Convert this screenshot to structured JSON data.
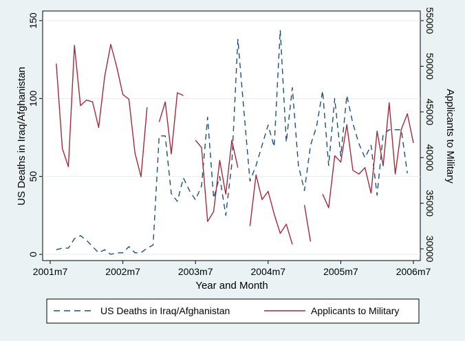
{
  "chart_data": {
    "type": "line",
    "xlabel": "Year and Month",
    "ylabel_left": "US Deaths in Iraq/Afghanistan",
    "ylabel_right": "Applicants to Military",
    "x_months_range": [
      "2001-08",
      "2006-07"
    ],
    "x_ticks": [
      "2001m7",
      "2002m7",
      "2003m7",
      "2004m7",
      "2005m7",
      "2006m7"
    ],
    "y_left_ticks": [
      "0",
      "50",
      "100",
      "150"
    ],
    "y_right_ticks": [
      "30000",
      "35000",
      "40000",
      "45000",
      "50000",
      "55000"
    ],
    "ylim_left": [
      0,
      150
    ],
    "ylim_right": [
      30000,
      55000
    ],
    "grid": "horizontal",
    "legend_position": "bottom",
    "colors": {
      "deaths": "#1a4f7a",
      "applicants": "#a3293a",
      "background": "#eaf2f3",
      "plot_bg": "#ffffff"
    },
    "series": [
      {
        "name": "US Deaths in Iraq/Afghanistan",
        "axis": "left",
        "style": "dashed",
        "x": [
          "2001-08",
          "2001-09",
          "2001-10",
          "2001-11",
          "2001-12",
          "2002-01",
          "2002-02",
          "2002-03",
          "2002-04",
          "2002-05",
          "2002-06",
          "2002-07",
          "2002-08",
          "2002-09",
          "2002-10",
          "2002-11",
          "2002-12",
          "2003-01",
          "2003-02",
          "2003-03",
          "2003-04",
          "2003-05",
          "2003-06",
          "2003-07",
          "2003-08",
          "2003-09",
          "2003-10",
          "2003-11",
          "2003-12",
          "2004-01",
          "2004-02",
          "2004-03",
          "2004-04",
          "2004-05",
          "2004-06",
          "2004-07",
          "2004-08",
          "2004-09",
          "2004-10",
          "2004-11",
          "2004-12",
          "2005-01",
          "2005-02",
          "2005-03",
          "2005-04",
          "2005-05",
          "2005-06",
          "2005-07",
          "2005-08",
          "2005-09",
          "2005-10",
          "2005-11",
          "2005-12",
          "2006-01",
          "2006-02",
          "2006-03",
          "2006-04",
          "2006-05",
          "2006-06",
          "2006-07"
        ],
        "values": [
          3,
          4,
          4,
          10,
          12,
          9,
          5,
          1,
          3,
          0,
          1,
          1,
          5,
          1,
          1,
          4,
          6,
          76,
          76,
          39,
          34,
          49,
          41,
          35,
          44,
          88,
          36,
          50,
          25,
          58,
          138,
          92,
          47,
          57,
          70,
          83,
          69,
          144,
          72,
          107,
          57,
          41,
          70,
          82,
          105,
          57,
          100,
          63,
          102,
          84,
          71,
          62,
          70,
          38,
          77,
          80,
          80,
          80,
          52,
          null
        ]
      },
      {
        "name": "Applicants to Military",
        "axis": "right",
        "style": "solid",
        "x": [
          "2001-08",
          "2001-09",
          "2001-10",
          "2001-11",
          "2001-12",
          "2002-01",
          "2002-02",
          "2002-03",
          "2002-04",
          "2002-05",
          "2002-06",
          "2002-07",
          "2002-08",
          "2002-09",
          "2002-10",
          "2002-11",
          "2002-12",
          "2003-01",
          "2003-02",
          "2003-03",
          "2003-04",
          "2003-05",
          "2003-06",
          "2003-07",
          "2003-08",
          "2003-09",
          "2003-10",
          "2003-11",
          "2003-12",
          "2004-01",
          "2004-02",
          "2004-03",
          "2004-04",
          "2004-05",
          "2004-06",
          "2004-07",
          "2004-08",
          "2004-09",
          "2004-10",
          "2004-11",
          "2004-12",
          "2005-01",
          "2005-02",
          "2005-03",
          "2005-04",
          "2005-05",
          "2005-06",
          "2005-07",
          "2005-08",
          "2005-09",
          "2005-10",
          "2005-11",
          "2005-12",
          "2006-01",
          "2006-02",
          "2006-03",
          "2006-04",
          "2006-05",
          "2006-06",
          "2006-07"
        ],
        "values": [
          50300,
          41000,
          39000,
          52300,
          45700,
          46300,
          46100,
          43300,
          48900,
          52400,
          49900,
          46900,
          46400,
          40500,
          37900,
          45500,
          null,
          43900,
          46100,
          40400,
          47100,
          46800,
          null,
          41900,
          41100,
          33000,
          34100,
          39700,
          36000,
          41900,
          38900,
          null,
          32500,
          38100,
          35400,
          36300,
          33800,
          31700,
          32700,
          30500,
          null,
          34800,
          30800,
          null,
          36000,
          34500,
          40200,
          39500,
          43600,
          38600,
          38200,
          38900,
          36100,
          42900,
          39100,
          46000,
          38200,
          43100,
          44800,
          41600
        ]
      }
    ]
  },
  "legend": [
    {
      "label": "US Deaths in Iraq/Afghanistan",
      "style": "dashed"
    },
    {
      "label": "Applicants to Military",
      "style": "solid"
    }
  ]
}
